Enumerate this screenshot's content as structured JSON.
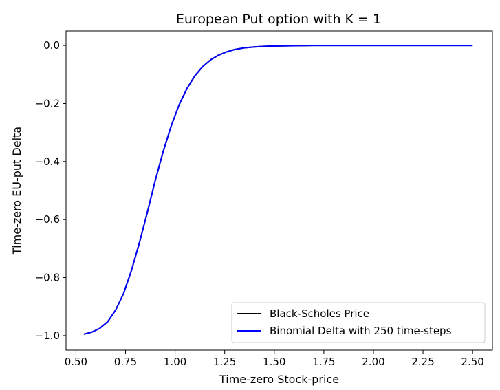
{
  "chart_data": {
    "type": "line",
    "title": "European Put option with K = 1",
    "xlabel": "Time-zero Stock-price",
    "ylabel": "Time-zero EU-put Delta",
    "xlim": [
      0.45,
      2.6
    ],
    "ylim": [
      -1.05,
      0.05
    ],
    "xticks": [
      0.5,
      0.75,
      1.0,
      1.25,
      1.5,
      1.75,
      2.0,
      2.25,
      2.5
    ],
    "xtick_labels": [
      "0.50",
      "0.75",
      "1.00",
      "1.25",
      "1.50",
      "1.75",
      "2.00",
      "2.25",
      "2.50"
    ],
    "yticks": [
      -1.0,
      -0.8,
      -0.6,
      -0.4,
      -0.2,
      0.0
    ],
    "ytick_labels": [
      "−1.0",
      "−0.8",
      "−0.6",
      "−0.4",
      "−0.2",
      "0.0"
    ],
    "grid": false,
    "legend_position": "lower-right",
    "x": [
      0.54,
      0.58,
      0.62,
      0.66,
      0.7,
      0.74,
      0.78,
      0.82,
      0.86,
      0.9,
      0.94,
      0.98,
      1.02,
      1.06,
      1.1,
      1.14,
      1.18,
      1.22,
      1.26,
      1.3,
      1.35,
      1.4,
      1.45,
      1.5,
      1.6,
      1.7,
      1.8,
      1.9,
      2.0,
      2.2,
      2.5
    ],
    "series": [
      {
        "name": "Black-Scholes Price",
        "color": "#000000",
        "values": [
          -0.995,
          -0.988,
          -0.975,
          -0.952,
          -0.912,
          -0.855,
          -0.775,
          -0.68,
          -0.575,
          -0.465,
          -0.365,
          -0.278,
          -0.205,
          -0.148,
          -0.104,
          -0.072,
          -0.049,
          -0.033,
          -0.022,
          -0.014,
          -0.008,
          -0.005,
          -0.003,
          -0.002,
          -0.001,
          0.0,
          0.0,
          0.0,
          0.0,
          0.0,
          0.0
        ]
      },
      {
        "name": "Binomial Delta with 250 time-steps",
        "color": "#0000ff",
        "values": [
          -0.995,
          -0.988,
          -0.975,
          -0.952,
          -0.912,
          -0.855,
          -0.775,
          -0.68,
          -0.575,
          -0.465,
          -0.365,
          -0.278,
          -0.205,
          -0.148,
          -0.104,
          -0.072,
          -0.049,
          -0.033,
          -0.022,
          -0.014,
          -0.008,
          -0.005,
          -0.003,
          -0.002,
          -0.001,
          0.0,
          0.0,
          0.0,
          0.0,
          0.0,
          0.0
        ]
      }
    ]
  }
}
